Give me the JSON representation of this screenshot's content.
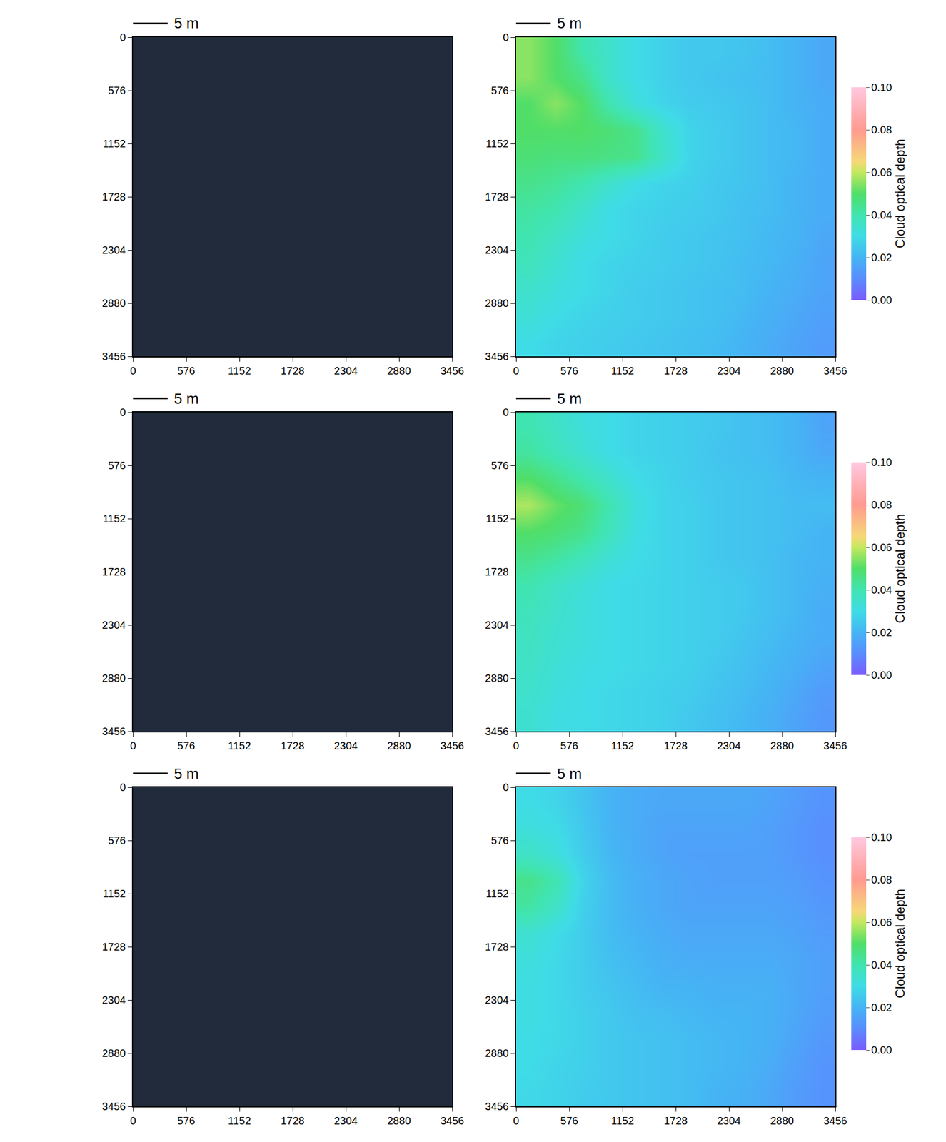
{
  "chart_data": [
    {
      "type": "image",
      "color": "#212b3c",
      "xlim": [
        0,
        3456
      ],
      "ylim": [
        3456,
        0
      ],
      "xticks": [
        0,
        576,
        1152,
        1728,
        2304,
        2880,
        3456
      ],
      "yticks": [
        0,
        576,
        1152,
        1728,
        2304,
        2880,
        3456
      ],
      "scale_bar": {
        "text": "5 m",
        "length": 375
      }
    },
    {
      "type": "heatmap",
      "xlim": [
        0,
        3456
      ],
      "ylim": [
        3456,
        0
      ],
      "xticks": [
        0,
        576,
        1152,
        1728,
        2304,
        2880,
        3456
      ],
      "yticks": [
        0,
        576,
        1152,
        1728,
        2304,
        2880,
        3456
      ],
      "scale_bar": {
        "text": "5 m",
        "length": 375
      },
      "x": [
        144,
        432,
        720,
        1008,
        1296,
        1584,
        1872,
        2160,
        2448,
        2736,
        3024,
        3312
      ],
      "y": [
        144,
        432,
        720,
        1008,
        1296,
        1584,
        1872,
        2160,
        2448,
        2736,
        3024,
        3312
      ],
      "z": [
        [
          0.055,
          0.05,
          0.04,
          0.035,
          0.03,
          0.027,
          0.025,
          0.025,
          0.024,
          0.022,
          0.02,
          0.017
        ],
        [
          0.055,
          0.05,
          0.045,
          0.035,
          0.03,
          0.027,
          0.025,
          0.024,
          0.023,
          0.022,
          0.02,
          0.017
        ],
        [
          0.05,
          0.055,
          0.05,
          0.04,
          0.032,
          0.028,
          0.026,
          0.025,
          0.024,
          0.022,
          0.02,
          0.018
        ],
        [
          0.05,
          0.05,
          0.05,
          0.048,
          0.045,
          0.035,
          0.028,
          0.026,
          0.024,
          0.022,
          0.021,
          0.018
        ],
        [
          0.048,
          0.047,
          0.047,
          0.046,
          0.045,
          0.036,
          0.028,
          0.026,
          0.024,
          0.022,
          0.021,
          0.018
        ],
        [
          0.045,
          0.043,
          0.04,
          0.035,
          0.03,
          0.028,
          0.027,
          0.025,
          0.024,
          0.022,
          0.02,
          0.018
        ],
        [
          0.042,
          0.04,
          0.035,
          0.03,
          0.028,
          0.027,
          0.026,
          0.025,
          0.023,
          0.022,
          0.02,
          0.018
        ],
        [
          0.04,
          0.036,
          0.032,
          0.03,
          0.028,
          0.026,
          0.025,
          0.024,
          0.023,
          0.021,
          0.02,
          0.017
        ],
        [
          0.038,
          0.034,
          0.03,
          0.028,
          0.027,
          0.026,
          0.025,
          0.024,
          0.022,
          0.021,
          0.019,
          0.016
        ],
        [
          0.035,
          0.032,
          0.03,
          0.028,
          0.026,
          0.025,
          0.024,
          0.023,
          0.022,
          0.02,
          0.018,
          0.016
        ],
        [
          0.033,
          0.03,
          0.028,
          0.027,
          0.026,
          0.025,
          0.024,
          0.023,
          0.021,
          0.019,
          0.017,
          0.015
        ],
        [
          0.03,
          0.028,
          0.027,
          0.026,
          0.025,
          0.024,
          0.023,
          0.022,
          0.02,
          0.018,
          0.016,
          0.014
        ]
      ],
      "colorbar": {
        "title": "Cloud optical depth",
        "range": [
          0,
          0.1
        ],
        "ticks": [
          {
            "value": 0,
            "label": "0.00"
          },
          {
            "value": 0.02,
            "label": "0.02"
          },
          {
            "value": 0.04,
            "label": "0.04"
          },
          {
            "value": 0.06,
            "label": "0.06"
          },
          {
            "value": 0.08,
            "label": "0.08"
          },
          {
            "value": 0.1,
            "label": "0.10"
          }
        ]
      }
    },
    {
      "type": "image",
      "color": "#212b3c",
      "xlim": [
        0,
        3456
      ],
      "ylim": [
        3456,
        0
      ],
      "xticks": [
        0,
        576,
        1152,
        1728,
        2304,
        2880,
        3456
      ],
      "yticks": [
        0,
        576,
        1152,
        1728,
        2304,
        2880,
        3456
      ],
      "scale_bar": {
        "text": "5 m",
        "length": 375
      }
    },
    {
      "type": "heatmap",
      "xlim": [
        0,
        3456
      ],
      "ylim": [
        3456,
        0
      ],
      "xticks": [
        0,
        576,
        1152,
        1728,
        2304,
        2880,
        3456
      ],
      "yticks": [
        0,
        576,
        1152,
        1728,
        2304,
        2880,
        3456
      ],
      "scale_bar": {
        "text": "5 m",
        "length": 375
      },
      "x": [
        144,
        432,
        720,
        1008,
        1296,
        1584,
        1872,
        2160,
        2448,
        2736,
        3024,
        3312
      ],
      "y": [
        144,
        432,
        720,
        1008,
        1296,
        1584,
        1872,
        2160,
        2448,
        2736,
        3024,
        3312
      ],
      "z": [
        [
          0.04,
          0.036,
          0.032,
          0.03,
          0.028,
          0.027,
          0.026,
          0.025,
          0.023,
          0.022,
          0.02,
          0.016
        ],
        [
          0.042,
          0.038,
          0.034,
          0.03,
          0.028,
          0.027,
          0.026,
          0.024,
          0.023,
          0.022,
          0.02,
          0.017
        ],
        [
          0.05,
          0.045,
          0.04,
          0.035,
          0.03,
          0.028,
          0.026,
          0.025,
          0.024,
          0.023,
          0.021,
          0.02
        ],
        [
          0.058,
          0.052,
          0.048,
          0.04,
          0.032,
          0.028,
          0.027,
          0.025,
          0.024,
          0.023,
          0.022,
          0.022
        ],
        [
          0.05,
          0.048,
          0.045,
          0.038,
          0.031,
          0.028,
          0.027,
          0.025,
          0.024,
          0.023,
          0.022,
          0.02
        ],
        [
          0.045,
          0.042,
          0.038,
          0.033,
          0.03,
          0.028,
          0.027,
          0.025,
          0.024,
          0.023,
          0.021,
          0.02
        ],
        [
          0.04,
          0.036,
          0.033,
          0.03,
          0.029,
          0.028,
          0.027,
          0.026,
          0.025,
          0.023,
          0.021,
          0.019
        ],
        [
          0.038,
          0.035,
          0.032,
          0.03,
          0.029,
          0.028,
          0.027,
          0.026,
          0.025,
          0.023,
          0.021,
          0.018
        ],
        [
          0.037,
          0.034,
          0.032,
          0.03,
          0.029,
          0.028,
          0.027,
          0.026,
          0.024,
          0.022,
          0.02,
          0.018
        ],
        [
          0.036,
          0.033,
          0.031,
          0.03,
          0.029,
          0.028,
          0.027,
          0.025,
          0.023,
          0.021,
          0.019,
          0.016
        ],
        [
          0.035,
          0.032,
          0.03,
          0.029,
          0.028,
          0.027,
          0.026,
          0.024,
          0.022,
          0.02,
          0.017,
          0.014
        ],
        [
          0.034,
          0.031,
          0.03,
          0.029,
          0.028,
          0.027,
          0.025,
          0.023,
          0.021,
          0.019,
          0.016,
          0.013
        ]
      ],
      "colorbar": {
        "title": "Cloud optical depth",
        "range": [
          0,
          0.1
        ],
        "ticks": [
          {
            "value": 0,
            "label": "0.00"
          },
          {
            "value": 0.02,
            "label": "0.02"
          },
          {
            "value": 0.04,
            "label": "0.04"
          },
          {
            "value": 0.06,
            "label": "0.06"
          },
          {
            "value": 0.08,
            "label": "0.08"
          },
          {
            "value": 0.1,
            "label": "0.10"
          }
        ]
      }
    },
    {
      "type": "image",
      "color": "#212b3c",
      "xlim": [
        0,
        3456
      ],
      "ylim": [
        3456,
        0
      ],
      "xticks": [
        0,
        576,
        1152,
        1728,
        2304,
        2880,
        3456
      ],
      "yticks": [
        0,
        576,
        1152,
        1728,
        2304,
        2880,
        3456
      ],
      "scale_bar": {
        "text": "5 m",
        "length": 375
      }
    },
    {
      "type": "heatmap",
      "xlim": [
        0,
        3456
      ],
      "ylim": [
        3456,
        0
      ],
      "xticks": [
        0,
        576,
        1152,
        1728,
        2304,
        2880,
        3456
      ],
      "yticks": [
        0,
        576,
        1152,
        1728,
        2304,
        2880,
        3456
      ],
      "scale_bar": {
        "text": "5 m",
        "length": 375
      },
      "x": [
        144,
        432,
        720,
        1008,
        1296,
        1584,
        1872,
        2160,
        2448,
        2736,
        3024,
        3312
      ],
      "y": [
        144,
        432,
        720,
        1008,
        1296,
        1584,
        1872,
        2160,
        2448,
        2736,
        3024,
        3312
      ],
      "z": [
        [
          0.03,
          0.028,
          0.024,
          0.02,
          0.018,
          0.017,
          0.017,
          0.017,
          0.017,
          0.016,
          0.014,
          0.012
        ],
        [
          0.032,
          0.03,
          0.025,
          0.02,
          0.018,
          0.016,
          0.016,
          0.016,
          0.016,
          0.015,
          0.013,
          0.011
        ],
        [
          0.036,
          0.032,
          0.026,
          0.021,
          0.018,
          0.016,
          0.015,
          0.015,
          0.015,
          0.015,
          0.013,
          0.011
        ],
        [
          0.045,
          0.04,
          0.028,
          0.022,
          0.019,
          0.017,
          0.016,
          0.015,
          0.015,
          0.015,
          0.014,
          0.012
        ],
        [
          0.042,
          0.036,
          0.027,
          0.022,
          0.019,
          0.017,
          0.016,
          0.016,
          0.016,
          0.016,
          0.015,
          0.013
        ],
        [
          0.034,
          0.03,
          0.026,
          0.022,
          0.02,
          0.018,
          0.017,
          0.017,
          0.017,
          0.017,
          0.016,
          0.014
        ],
        [
          0.032,
          0.029,
          0.026,
          0.023,
          0.021,
          0.019,
          0.018,
          0.018,
          0.018,
          0.018,
          0.017,
          0.015
        ],
        [
          0.031,
          0.029,
          0.026,
          0.024,
          0.022,
          0.02,
          0.02,
          0.019,
          0.019,
          0.019,
          0.017,
          0.015
        ],
        [
          0.031,
          0.029,
          0.027,
          0.025,
          0.023,
          0.022,
          0.021,
          0.02,
          0.02,
          0.019,
          0.017,
          0.014
        ],
        [
          0.03,
          0.029,
          0.027,
          0.025,
          0.024,
          0.023,
          0.022,
          0.021,
          0.02,
          0.019,
          0.016,
          0.013
        ],
        [
          0.03,
          0.028,
          0.027,
          0.025,
          0.024,
          0.023,
          0.022,
          0.021,
          0.02,
          0.018,
          0.015,
          0.012
        ],
        [
          0.029,
          0.028,
          0.026,
          0.025,
          0.024,
          0.023,
          0.022,
          0.02,
          0.019,
          0.017,
          0.014,
          0.012
        ]
      ],
      "colorbar": {
        "title": "Cloud optical depth",
        "range": [
          0,
          0.1
        ],
        "ticks": [
          {
            "value": 0,
            "label": "0.00"
          },
          {
            "value": 0.02,
            "label": "0.02"
          },
          {
            "value": 0.04,
            "label": "0.04"
          },
          {
            "value": 0.06,
            "label": "0.06"
          },
          {
            "value": 0.08,
            "label": "0.08"
          },
          {
            "value": 0.1,
            "label": "0.10"
          }
        ]
      }
    }
  ]
}
